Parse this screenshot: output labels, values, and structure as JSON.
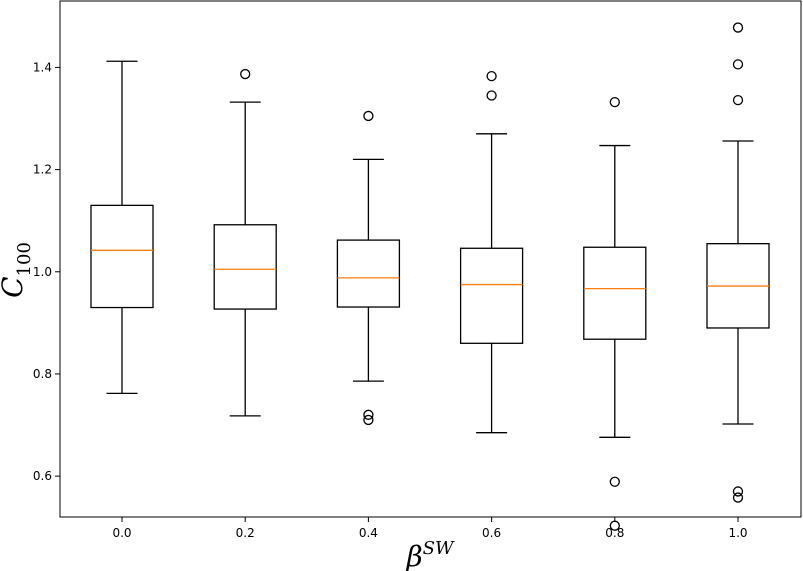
{
  "chart_data": {
    "type": "box",
    "title": "",
    "xlabel": "β",
    "xlabel_superscript": "SW",
    "ylabel": "C",
    "ylabel_subscript": "100",
    "ylim": [
      0.52,
      1.53
    ],
    "yticks": [
      0.6,
      0.8,
      1.0,
      1.2,
      1.4
    ],
    "ytick_labels": [
      "0.6",
      "0.8",
      "1.0",
      "1.2",
      "1.4"
    ],
    "categories": [
      "0.0",
      "0.2",
      "0.4",
      "0.6",
      "0.8",
      "1.0"
    ],
    "grid": false,
    "median_color": "#ff7f0e",
    "box_color": "#000000",
    "boxes": [
      {
        "label": "0.0",
        "whisker_low": 0.762,
        "q1": 0.93,
        "median": 1.042,
        "q3": 1.13,
        "whisker_high": 1.412,
        "outliers": []
      },
      {
        "label": "0.2",
        "whisker_low": 0.718,
        "q1": 0.927,
        "median": 1.005,
        "q3": 1.092,
        "whisker_high": 1.332,
        "outliers": [
          1.387
        ]
      },
      {
        "label": "0.4",
        "whisker_low": 0.786,
        "q1": 0.931,
        "median": 0.988,
        "q3": 1.062,
        "whisker_high": 1.22,
        "outliers": [
          1.305,
          0.72,
          0.71
        ]
      },
      {
        "label": "0.6",
        "whisker_low": 0.685,
        "q1": 0.86,
        "median": 0.975,
        "q3": 1.046,
        "whisker_high": 1.27,
        "outliers": [
          1.383,
          1.345
        ]
      },
      {
        "label": "0.8",
        "whisker_low": 0.676,
        "q1": 0.868,
        "median": 0.967,
        "q3": 1.048,
        "whisker_high": 1.247,
        "outliers": [
          1.332,
          0.589,
          0.503
        ]
      },
      {
        "label": "1.0",
        "whisker_low": 0.702,
        "q1": 0.89,
        "median": 0.972,
        "q3": 1.055,
        "whisker_high": 1.256,
        "outliers": [
          1.478,
          1.406,
          1.336,
          0.57,
          0.558
        ]
      }
    ]
  }
}
